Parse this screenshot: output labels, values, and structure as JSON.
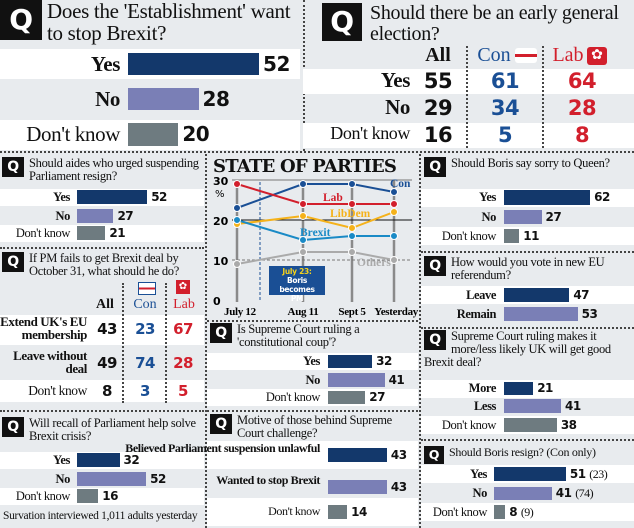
{
  "colors": {
    "bar_primary": "#13386b",
    "bar_secondary": "#7a7fb6",
    "bar_neutral": "#6e7b80",
    "con": "#1a4f95",
    "lab": "#d21f2c",
    "libdem": "#f5b21b",
    "brexit": "#1a8ac6",
    "others": "#aaaaaa"
  },
  "q_icon": "Q",
  "footer": "Survation interviewed  1,011 adults yesterday",
  "election_table": {
    "title": "Should there be an early general election?",
    "columns": [
      "All",
      "Con",
      "Lab"
    ],
    "rows": [
      {
        "label": "Yes",
        "values": [
          "55",
          "61",
          "64"
        ]
      },
      {
        "label": "No",
        "values": [
          "29",
          "34",
          "28"
        ]
      },
      {
        "label": "Don't know",
        "values": [
          "16",
          "5",
          "8"
        ]
      }
    ]
  },
  "pm_table": {
    "title": "If PM fails to get Brexit deal by October 31, what should he do?",
    "columns": [
      "All",
      "Con",
      "Lab"
    ],
    "rows": [
      {
        "label": "Extend UK's EU membership",
        "values": [
          "43",
          "23",
          "67"
        ]
      },
      {
        "label": "Leave without deal",
        "values": [
          "49",
          "74",
          "28"
        ]
      },
      {
        "label": "Don't know",
        "values": [
          "8",
          "3",
          "5"
        ]
      }
    ]
  },
  "chart_data": [
    {
      "type": "line",
      "title": "STATE OF PARTIES",
      "ylabel": "%",
      "ylim": [
        0,
        30
      ],
      "yticks": [
        "0",
        "10",
        "20",
        "30"
      ],
      "x": [
        "July 12",
        "Aug 11",
        "Sept 5",
        "Yesterday"
      ],
      "annotation": {
        "title": "July 23:",
        "text": "Boris becomes PM"
      },
      "series": [
        {
          "name": "Con",
          "values": [
            23,
            29,
            29,
            27
          ]
        },
        {
          "name": "Lab",
          "values": [
            29,
            24,
            24,
            24
          ]
        },
        {
          "name": "LibDem",
          "values": [
            19,
            21,
            18,
            22
          ]
        },
        {
          "name": "Brexit",
          "values": [
            20,
            15,
            16,
            16
          ]
        },
        {
          "name": "Others",
          "values": [
            9,
            12,
            12,
            10
          ]
        }
      ]
    },
    {
      "type": "bar",
      "title": "Does the 'Establishment' want to stop Brexit?",
      "categories": [
        "Yes",
        "No",
        "Don't know"
      ],
      "values": [
        52,
        28,
        20
      ]
    },
    {
      "type": "bar",
      "title": "Should aides who urged suspending Parliament resign?",
      "categories": [
        "Yes",
        "No",
        "Don't know"
      ],
      "values": [
        52,
        27,
        21
      ]
    },
    {
      "type": "bar",
      "title": "Is Supreme Court ruling a 'constitutional coup'?",
      "categories": [
        "Yes",
        "No",
        "Don't know"
      ],
      "values": [
        32,
        41,
        27
      ]
    },
    {
      "type": "bar",
      "title": "Will recall of Parliament help solve Brexit crisis?",
      "categories": [
        "Yes",
        "No",
        "Don't know"
      ],
      "values": [
        32,
        52,
        16
      ]
    },
    {
      "type": "bar",
      "title": "Motive of those behind Supreme Court challenge?",
      "categories": [
        "Believed Parliament suspension unlawful",
        "Wanted to stop Brexit",
        "Don't know"
      ],
      "values": [
        43,
        43,
        14
      ]
    },
    {
      "type": "bar",
      "title": "Should Boris say sorry to Queen?",
      "categories": [
        "Yes",
        "No",
        "Don't know"
      ],
      "values": [
        62,
        27,
        11
      ]
    },
    {
      "type": "bar",
      "title": "How would you vote in new EU referendum?",
      "categories": [
        "Leave",
        "Remain"
      ],
      "values": [
        47,
        53
      ]
    },
    {
      "type": "bar",
      "title": "Supreme Court ruling makes it more/less likely UK will get good Brexit deal?",
      "categories": [
        "More",
        "Less",
        "Don't know"
      ],
      "values": [
        21,
        41,
        38
      ]
    },
    {
      "type": "bar",
      "title": "Should Boris resign? (Con only)",
      "categories": [
        "Yes",
        "No",
        "Don't know"
      ],
      "values": [
        51,
        41,
        8
      ],
      "extra_labels": [
        "(23)",
        "(74)",
        "(9)"
      ]
    }
  ]
}
